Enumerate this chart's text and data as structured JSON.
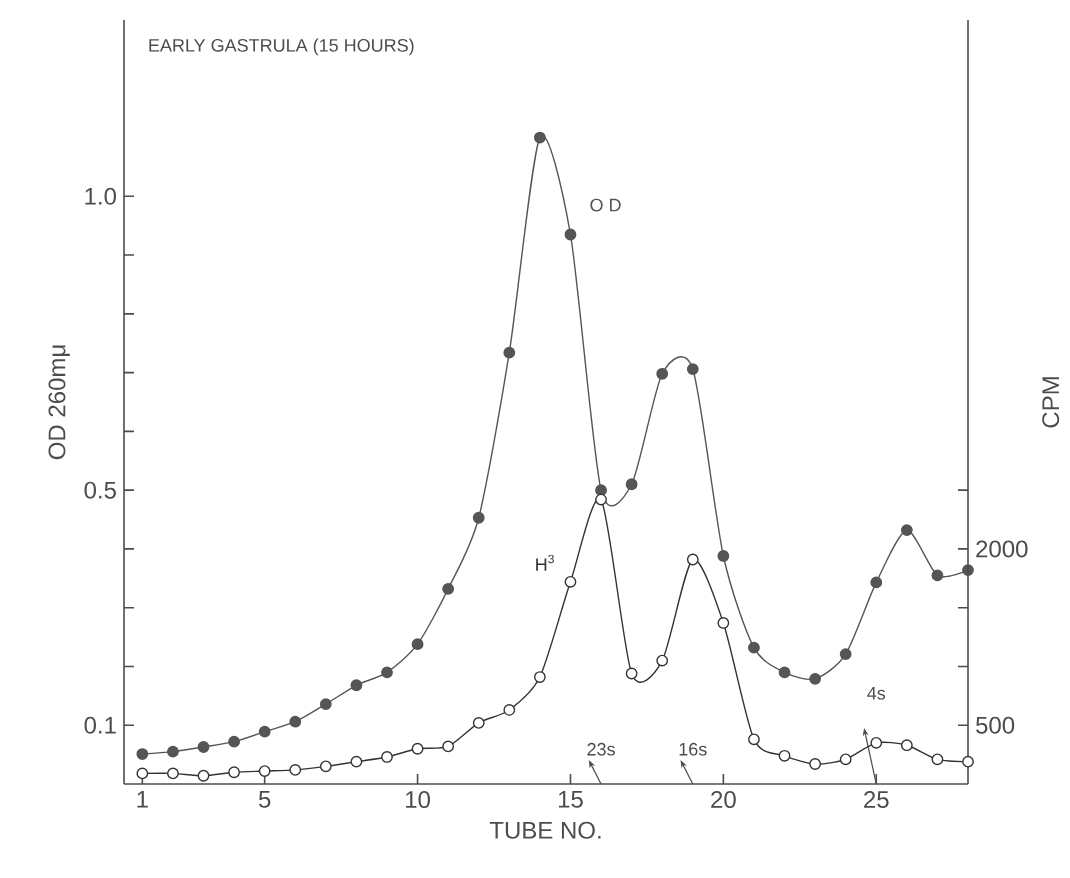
{
  "chart_data": {
    "type": "line",
    "title": "EARLY GASTRULA (15 HOURS)",
    "xlabel": "TUBE NO.",
    "ylabel": "OD 260mμ",
    "y2label": "CPM",
    "x": [
      1,
      2,
      3,
      4,
      5,
      6,
      7,
      8,
      9,
      10,
      11,
      12,
      13,
      14,
      15,
      16,
      17,
      18,
      19,
      20,
      21,
      22,
      23,
      24,
      25,
      26,
      27,
      28
    ],
    "series": [
      {
        "name": "O D",
        "color": "#555555",
        "values": [
          0.051,
          0.055,
          0.063,
          0.072,
          0.089,
          0.106,
          0.136,
          0.168,
          0.19,
          0.238,
          0.332,
          0.453,
          0.734,
          1.1,
          0.935,
          0.5,
          0.51,
          0.698,
          0.706,
          0.388,
          0.232,
          0.19,
          0.179,
          0.221,
          0.343,
          0.432,
          0.355,
          0.364
        ]
      },
      {
        "name": "H$^{3}$",
        "color": "#333333",
        "axis": "y2",
        "values": [
          90,
          90,
          70,
          100,
          110,
          120,
          150,
          190,
          230,
          300,
          320,
          520,
          630,
          910,
          1720,
          2420,
          940,
          1050,
          1910,
          1370,
          380,
          240,
          170,
          210,
          350,
          330,
          210,
          190
        ]
      }
    ],
    "marker": "circle",
    "xlim": [
      0.4,
      28
    ],
    "xticks": [
      1,
      5,
      10,
      15,
      20,
      25
    ],
    "ylim": [
      0,
      1.3
    ],
    "yticks": [
      0.1,
      {
        "value": 0.2,
        "label": null
      },
      {
        "value": 0.3,
        "label": null
      },
      {
        "value": 0.4,
        "label": null
      },
      0.5,
      {
        "value": 0.6,
        "label": null
      },
      {
        "value": 0.7,
        "label": null
      },
      {
        "value": 0.8,
        "label": null
      },
      {
        "value": 0.9,
        "label": null
      },
      {
        "value": 1.0,
        "label": "1.0"
      }
    ],
    "y2lim": [
      0,
      6500
    ],
    "y2ticks": [
      500,
      {
        "value": 1000,
        "label": null
      },
      {
        "value": 1500,
        "label": null
      },
      2000,
      {
        "value": 2500,
        "label": null
      }
    ],
    "annotations": [
      "23s",
      "16s",
      "4s"
    ]
  }
}
